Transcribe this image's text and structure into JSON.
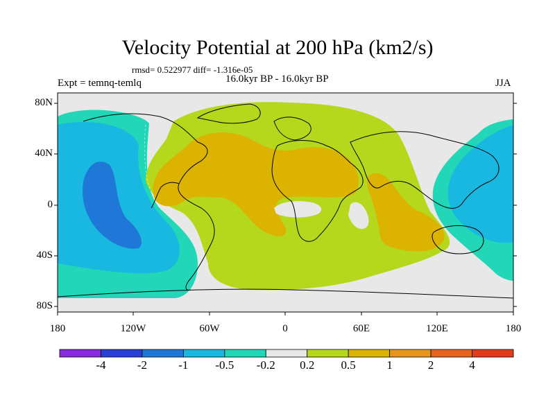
{
  "title": "Velocity Potential at 200 hPa (km2/s)",
  "stats_line": "rmsd= 0.522977 diff= -1.316e-05",
  "left_label": "Expt = temnq-temlq",
  "center_label": "16.0kyr BP - 16.0kyr BP",
  "right_label": "JJA",
  "lat_ticks": [
    "80N",
    "40N",
    "0",
    "40S",
    "80S"
  ],
  "lon_ticks": [
    "180",
    "120W",
    "60W",
    "0",
    "60E",
    "120E",
    "180"
  ],
  "colorbar": {
    "colors": [
      "#8a2be2",
      "#2a3fd6",
      "#1f78d8",
      "#18b8e0",
      "#22d6b8",
      "#e8e8e8",
      "#b5d71c",
      "#dcb300",
      "#e8961b",
      "#e8631e",
      "#e23c1c"
    ],
    "labels": [
      "-4",
      "-2",
      "-1",
      "-0.5",
      "-0.2",
      "0.2",
      "0.5",
      "1",
      "2",
      "4"
    ]
  }
}
